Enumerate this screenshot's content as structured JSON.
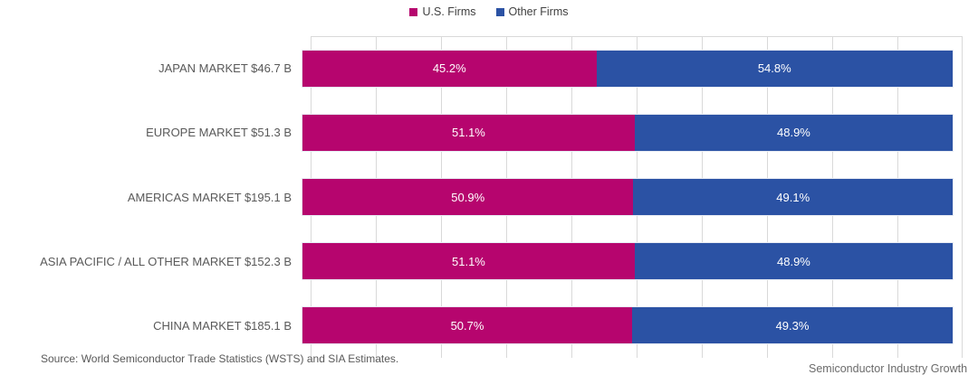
{
  "legend": {
    "items": [
      {
        "label": "U.S. Firms",
        "color": "#b6056e"
      },
      {
        "label": "Other Firms",
        "color": "#2b52a4"
      }
    ]
  },
  "chart_data": {
    "type": "bar",
    "orientation": "horizontal",
    "stacked": true,
    "unit": "%",
    "categories": [
      "JAPAN MARKET $46.7 B",
      "EUROPE MARKET $51.3 B",
      "AMERICAS MARKET $195.1 B",
      "ASIA PACIFIC / ALL OTHER MARKET $152.3 B",
      "CHINA MARKET $185.1 B"
    ],
    "series": [
      {
        "name": "U.S. Firms",
        "color": "#b6056e",
        "values": [
          45.2,
          51.1,
          50.9,
          51.1,
          50.7
        ]
      },
      {
        "name": "Other Firms",
        "color": "#2b52a4",
        "values": [
          54.8,
          48.9,
          49.1,
          48.9,
          49.3
        ]
      }
    ],
    "xlim": [
      0,
      100
    ],
    "grid": "vertical gridlines every 10%",
    "value_labels": "inside segments, white, one decimal + %",
    "legend_position": "top center"
  },
  "footer": {
    "source": "Source: World Semiconductor Trade Statistics (WSTS) and SIA Estimates.",
    "right_clipped": "Semiconductor Industry Growth"
  }
}
